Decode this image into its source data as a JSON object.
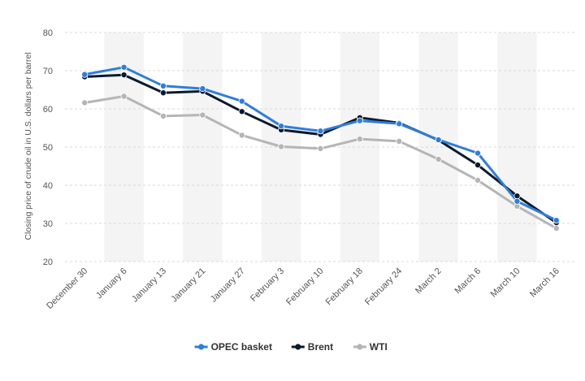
{
  "chart_data": {
    "type": "line",
    "title": "",
    "xlabel": "",
    "ylabel": "Closing price of crude oil in U.S. dollars per barrel",
    "ylim": [
      20,
      80
    ],
    "yticks": [
      20,
      30,
      40,
      50,
      60,
      70,
      80
    ],
    "grid": "horizontal dashed",
    "legend_position": "bottom-center",
    "categories": [
      "December 30",
      "January 6",
      "January 13",
      "January 21",
      "January 27",
      "February 3",
      "February 10",
      "February 18",
      "February 24",
      "March 2",
      "March 6",
      "March 10",
      "March 16"
    ],
    "series": [
      {
        "name": "OPEC basket",
        "color": "#2f7ed8",
        "values": [
          69.0,
          70.9,
          66.0,
          65.3,
          62.0,
          55.5,
          54.2,
          56.9,
          56.1,
          51.9,
          48.4,
          35.8,
          30.8
        ]
      },
      {
        "name": "Brent",
        "color": "#0d1a2d",
        "values": [
          68.4,
          68.9,
          64.2,
          64.6,
          59.3,
          54.5,
          53.3,
          57.7,
          56.3,
          51.8,
          45.3,
          37.2,
          30.2
        ]
      },
      {
        "name": "WTI",
        "color": "#b5b5b5",
        "values": [
          61.6,
          63.3,
          58.1,
          58.4,
          53.1,
          50.1,
          49.6,
          52.1,
          51.5,
          46.8,
          41.3,
          34.5,
          28.7
        ]
      }
    ]
  }
}
